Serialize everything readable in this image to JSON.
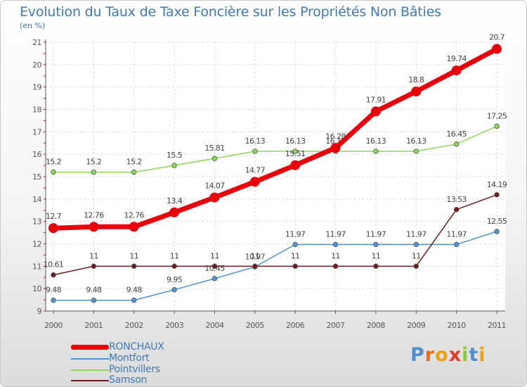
{
  "chart_data": {
    "type": "line",
    "title": "Evolution du Taux de Taxe Foncière sur les Propriétés Non Bâties",
    "ylabel": "(en %)",
    "xlabel": "",
    "ylim": [
      9,
      21
    ],
    "yticks": [
      9,
      10,
      11,
      12,
      13,
      14,
      15,
      16,
      17,
      18,
      19,
      20,
      21
    ],
    "categories": [
      "2000",
      "2001",
      "2002",
      "2003",
      "2004",
      "2005",
      "2006",
      "2007",
      "2008",
      "2009",
      "2010",
      "2011"
    ],
    "series": [
      {
        "name": "RONCHAUX",
        "color": "#e8000b",
        "values": [
          12.7,
          12.76,
          12.76,
          13.4,
          14.07,
          14.77,
          15.51,
          16.28,
          17.91,
          18.8,
          19.74,
          20.7
        ],
        "labels": [
          "12.7",
          "12.76",
          "12.76",
          "13.4",
          "14.07",
          "14.77",
          "15.51",
          "16.28",
          "17.91",
          "18.8",
          "19.74",
          "20.7"
        ]
      },
      {
        "name": "Montfort",
        "color": "#4f94d3",
        "values": [
          9.48,
          9.48,
          9.48,
          9.95,
          10.45,
          10.97,
          11.97,
          11.97,
          11.97,
          11.97,
          11.97,
          12.55
        ],
        "labels": [
          "9.48",
          "9.48",
          "9.48",
          "9.95",
          "10.45",
          "10.97",
          "11.97",
          "11.97",
          "11.97",
          "11.97",
          "11.97",
          "12.55"
        ]
      },
      {
        "name": "Pointvillers",
        "color": "#8ed957",
        "values": [
          15.2,
          15.2,
          15.2,
          15.5,
          15.81,
          16.13,
          16.13,
          16.13,
          16.13,
          16.13,
          16.45,
          17.25
        ],
        "labels": [
          "15.2",
          "15.2",
          "15.2",
          "15.5",
          "15.81",
          "16.13",
          "16.13",
          "16.13",
          "16.13",
          "16.13",
          "16.45",
          "17.25"
        ]
      },
      {
        "name": "Samson",
        "color": "#6d1b1b",
        "values": [
          10.61,
          11,
          11,
          11,
          11,
          11,
          11,
          11,
          11,
          11,
          13.53,
          14.19
        ],
        "labels": [
          "10.61",
          "11",
          "11",
          "11",
          "11",
          "11",
          "11",
          "11",
          "11",
          "11",
          "13.53",
          "14.19"
        ]
      }
    ],
    "legend_position": "bottom-left"
  },
  "brand": {
    "logo_letters": [
      "P",
      "r",
      "o",
      "x",
      "i",
      "t",
      "i"
    ]
  }
}
